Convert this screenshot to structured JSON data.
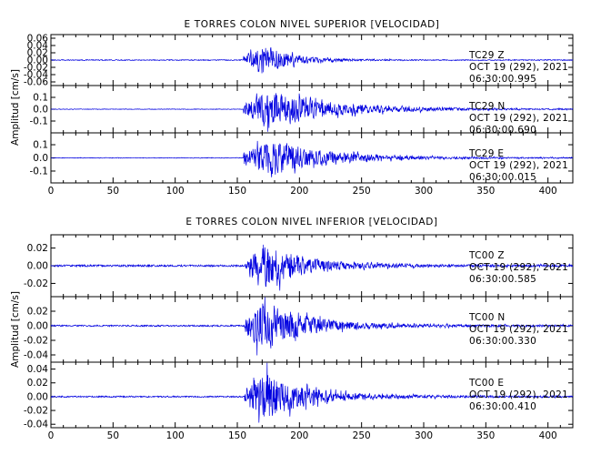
{
  "chart_data": [
    {
      "type": "line",
      "title": "E TORRES COLON NIVEL SUPERIOR [VELOCIDAD]",
      "ylabel": "Amplitud [cm/s]",
      "xlabel": "",
      "xlim": [
        0,
        420
      ],
      "x_ticks": [
        0,
        50,
        100,
        150,
        200,
        250,
        300,
        350,
        400
      ],
      "x_tick_labels": [
        "0",
        "50",
        "100",
        "150",
        "200",
        "250",
        "300",
        "350",
        "400"
      ],
      "line_color": "#0000e0",
      "panels": [
        {
          "station": "TC29",
          "component": "Z",
          "date": "OCT 19 (292), 2021",
          "start_time": "06:30:00.995",
          "ylim": [
            -0.07,
            0.07
          ],
          "y_ticks": [
            -0.06,
            -0.04,
            -0.02,
            0.0,
            0.02,
            0.04,
            0.06
          ],
          "y_tick_labels": [
            "-0.06",
            "-0.04",
            "-0.02",
            "0.00",
            "0.02",
            "0.04",
            "0.06"
          ],
          "waveform": {
            "noise": 0.0015,
            "onset": 155,
            "peak_time": 172,
            "peak_amp": 0.045,
            "decay": 22,
            "coda": 0
          }
        },
        {
          "station": "TC29",
          "component": "N",
          "date": "OCT 19 (292), 2021",
          "start_time": "06:30:00.690",
          "ylim": [
            -0.2,
            0.2
          ],
          "y_ticks": [
            -0.1,
            0.0,
            0.1
          ],
          "y_tick_labels": [
            "-0.1",
            "0.0",
            "0.1"
          ],
          "waveform": {
            "noise": 0.003,
            "onset": 155,
            "peak_time": 175,
            "peak_amp": 0.16,
            "decay": 45,
            "coda": 0.025
          }
        },
        {
          "station": "TC29",
          "component": "E",
          "date": "OCT 19 (292), 2021",
          "start_time": "06:30:00.015",
          "ylim": [
            -0.19,
            0.19
          ],
          "y_ticks": [
            -0.1,
            0.0,
            0.1
          ],
          "y_tick_labels": [
            "-0.1",
            "0.0",
            "0.1"
          ],
          "waveform": {
            "noise": 0.003,
            "onset": 155,
            "peak_time": 175,
            "peak_amp": 0.15,
            "decay": 38,
            "coda": 0.02
          }
        }
      ]
    },
    {
      "type": "line",
      "title": "E TORRES COLON NIVEL INFERIOR [VELOCIDAD]",
      "ylabel": "Amplitud [cm/s]",
      "xlabel": "",
      "xlim": [
        0,
        420
      ],
      "x_ticks": [
        0,
        50,
        100,
        150,
        200,
        250,
        300,
        350,
        400
      ],
      "x_tick_labels": [
        "0",
        "50",
        "100",
        "150",
        "200",
        "250",
        "300",
        "350",
        "400"
      ],
      "line_color": "#0000e0",
      "panels": [
        {
          "station": "TC00",
          "component": "Z",
          "date": "OCT 19 (292), 2021",
          "start_time": "06:30:00.585",
          "ylim": [
            -0.035,
            0.035
          ],
          "y_ticks": [
            -0.02,
            0.0,
            0.02
          ],
          "y_tick_labels": [
            "-0.02",
            "0.00",
            "0.02"
          ],
          "waveform": {
            "noise": 0.0012,
            "onset": 156,
            "peak_time": 172,
            "peak_amp": 0.025,
            "decay": 30,
            "coda": 0.002
          }
        },
        {
          "station": "TC00",
          "component": "N",
          "date": "OCT 19 (292), 2021",
          "start_time": "06:30:00.330",
          "ylim": [
            -0.05,
            0.04
          ],
          "y_ticks": [
            -0.04,
            -0.02,
            0.0,
            0.02
          ],
          "y_tick_labels": [
            "-0.04",
            "-0.02",
            "0.00",
            "0.02"
          ],
          "waveform": {
            "noise": 0.0012,
            "onset": 156,
            "peak_time": 170,
            "peak_amp": 0.036,
            "decay": 32,
            "coda": 0.003
          }
        },
        {
          "station": "TC00",
          "component": "E",
          "date": "OCT 19 (292), 2021",
          "start_time": "06:30:00.410",
          "ylim": [
            -0.045,
            0.05
          ],
          "y_ticks": [
            -0.04,
            -0.02,
            0.0,
            0.02,
            0.04
          ],
          "y_tick_labels": [
            "-0.04",
            "-0.02",
            "0.00",
            "0.02",
            "0.04"
          ],
          "waveform": {
            "noise": 0.0012,
            "onset": 156,
            "peak_time": 172,
            "peak_amp": 0.038,
            "decay": 30,
            "coda": 0.003
          }
        }
      ]
    }
  ]
}
